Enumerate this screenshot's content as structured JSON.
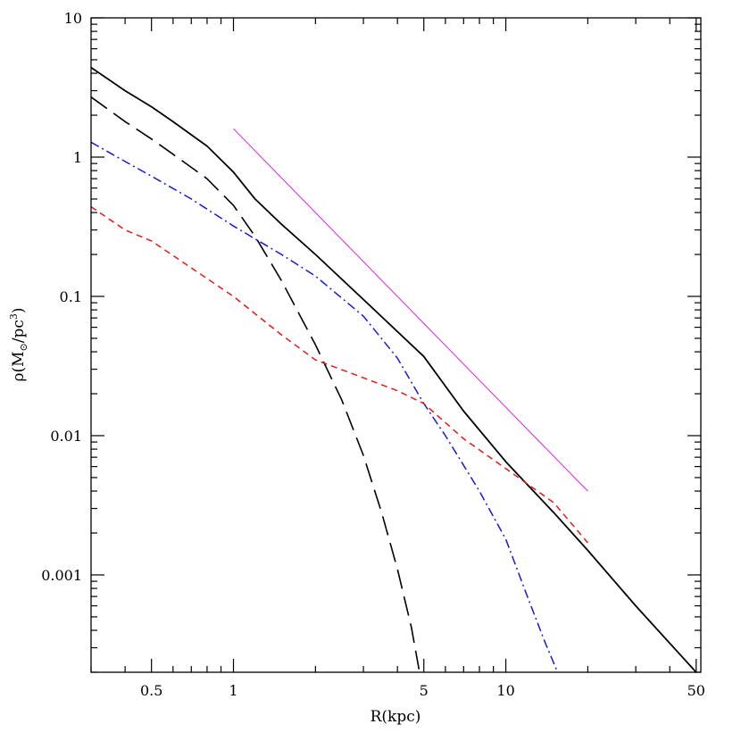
{
  "chart_data": {
    "type": "line",
    "title": "",
    "xlabel": "R(kpc)",
    "ylabel": {
      "prefix": "ρ(M",
      "sub": "⊙",
      "mid": "/pc",
      "sup": "3",
      "suffix": ")"
    },
    "xscale": "log",
    "yscale": "log",
    "xlim": [
      0.3,
      52
    ],
    "ylim": [
      0.0002,
      10
    ],
    "grid": false,
    "legend": "none",
    "x_ticks": [
      {
        "value": 0.5,
        "label": "0.5"
      },
      {
        "value": 1,
        "label": "1"
      },
      {
        "value": 5,
        "label": "5"
      },
      {
        "value": 10,
        "label": "10"
      },
      {
        "value": 50,
        "label": "50"
      }
    ],
    "y_ticks": [
      {
        "value": 10,
        "label": "10"
      },
      {
        "value": 1,
        "label": "1"
      },
      {
        "value": 0.1,
        "label": "0.1"
      },
      {
        "value": 0.01,
        "label": "0.01"
      },
      {
        "value": 0.001,
        "label": "0.001"
      }
    ],
    "series": [
      {
        "color": "#000000",
        "style": "solid",
        "width": 1.8,
        "points": [
          [
            0.3,
            4.4
          ],
          [
            0.4,
            3.0
          ],
          [
            0.5,
            2.3
          ],
          [
            0.6,
            1.8
          ],
          [
            0.8,
            1.2
          ],
          [
            1.0,
            0.78
          ],
          [
            1.2,
            0.5
          ],
          [
            1.5,
            0.33
          ],
          [
            2.0,
            0.2
          ],
          [
            3.0,
            0.095
          ],
          [
            5.0,
            0.037
          ],
          [
            7.0,
            0.015
          ],
          [
            10.0,
            0.0065
          ],
          [
            15.0,
            0.0028
          ],
          [
            20.0,
            0.0015
          ],
          [
            30.0,
            0.0006
          ],
          [
            50.0,
            0.0002
          ]
        ]
      },
      {
        "color": "#000000",
        "style": "long-dash",
        "width": 1.6,
        "points": [
          [
            0.3,
            2.7
          ],
          [
            0.4,
            1.8
          ],
          [
            0.5,
            1.35
          ],
          [
            0.6,
            1.05
          ],
          [
            0.8,
            0.7
          ],
          [
            1.0,
            0.45
          ],
          [
            1.2,
            0.27
          ],
          [
            1.5,
            0.13
          ],
          [
            2.0,
            0.045
          ],
          [
            2.5,
            0.018
          ],
          [
            3.0,
            0.0072
          ],
          [
            3.5,
            0.0028
          ],
          [
            4.0,
            0.0011
          ],
          [
            4.5,
            0.00042
          ],
          [
            4.8,
            0.00021
          ]
        ]
      },
      {
        "color": "#1818d8",
        "style": "dash-dot",
        "width": 1.5,
        "points": [
          [
            0.3,
            1.28
          ],
          [
            0.4,
            0.93
          ],
          [
            0.5,
            0.73
          ],
          [
            0.7,
            0.5
          ],
          [
            1.0,
            0.32
          ],
          [
            1.5,
            0.2
          ],
          [
            2.0,
            0.14
          ],
          [
            3.0,
            0.072
          ],
          [
            4.0,
            0.036
          ],
          [
            5.0,
            0.017
          ],
          [
            6.0,
            0.01
          ],
          [
            8.0,
            0.004
          ],
          [
            10.0,
            0.0018
          ],
          [
            12.0,
            0.0007
          ],
          [
            14.0,
            0.00032
          ],
          [
            15.5,
            0.0002
          ]
        ]
      },
      {
        "color": "#e81818",
        "style": "short-dash",
        "width": 1.5,
        "points": [
          [
            0.3,
            0.44
          ],
          [
            0.4,
            0.3
          ],
          [
            0.5,
            0.25
          ],
          [
            0.7,
            0.16
          ],
          [
            1.0,
            0.1
          ],
          [
            1.5,
            0.053
          ],
          [
            2.0,
            0.035
          ],
          [
            3.0,
            0.026
          ],
          [
            4.0,
            0.021
          ],
          [
            5.0,
            0.017
          ],
          [
            7.0,
            0.0095
          ],
          [
            10.0,
            0.0058
          ],
          [
            15.0,
            0.0033
          ],
          [
            20.0,
            0.0017
          ]
        ]
      },
      {
        "color": "#e020e0",
        "style": "solid",
        "width": 1.0,
        "points": [
          [
            1.0,
            1.6
          ],
          [
            20.0,
            0.004
          ]
        ]
      }
    ]
  }
}
